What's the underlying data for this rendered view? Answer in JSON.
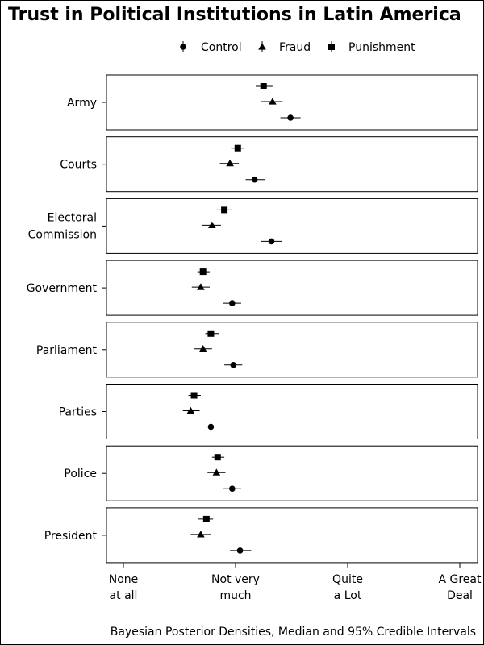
{
  "chart_data": {
    "type": "scatter",
    "title": "Trust in Political Institutions in Latin America",
    "caption": "Bayesian Posterior Densities, Median and 95% Credible Intervals",
    "legend": {
      "placement": "top",
      "entries": [
        {
          "name": "Control",
          "marker": "circle"
        },
        {
          "name": "Fraud",
          "marker": "triangle"
        },
        {
          "name": "Punishment",
          "marker": "square"
        }
      ]
    },
    "x_range": [
      1,
      4
    ],
    "x_ticks": [
      {
        "value": 1,
        "label": [
          "None",
          "at all"
        ]
      },
      {
        "value": 2,
        "label": [
          "Not very",
          "much"
        ]
      },
      {
        "value": 3,
        "label": [
          "Quite",
          "a Lot"
        ]
      },
      {
        "value": 4,
        "label": [
          "A Great",
          "Deal"
        ]
      }
    ],
    "categories": [
      {
        "label": [
          "Army"
        ],
        "points": {
          "Punishment": {
            "median": 2.25,
            "lo": 2.18,
            "hi": 2.33
          },
          "Fraud": {
            "median": 2.33,
            "lo": 2.23,
            "hi": 2.42
          },
          "Control": {
            "median": 2.49,
            "lo": 2.4,
            "hi": 2.58
          }
        }
      },
      {
        "label": [
          "Courts"
        ],
        "points": {
          "Punishment": {
            "median": 2.02,
            "lo": 1.96,
            "hi": 2.08
          },
          "Fraud": {
            "median": 1.95,
            "lo": 1.86,
            "hi": 2.03
          },
          "Control": {
            "median": 2.17,
            "lo": 2.09,
            "hi": 2.26
          }
        }
      },
      {
        "label": [
          "Electoral",
          "Commission"
        ],
        "points": {
          "Punishment": {
            "median": 1.9,
            "lo": 1.83,
            "hi": 1.97
          },
          "Fraud": {
            "median": 1.79,
            "lo": 1.7,
            "hi": 1.87
          },
          "Control": {
            "median": 2.32,
            "lo": 2.23,
            "hi": 2.41
          }
        }
      },
      {
        "label": [
          "Government"
        ],
        "points": {
          "Punishment": {
            "median": 1.71,
            "lo": 1.66,
            "hi": 1.77
          },
          "Fraud": {
            "median": 1.69,
            "lo": 1.61,
            "hi": 1.77
          },
          "Control": {
            "median": 1.97,
            "lo": 1.89,
            "hi": 2.05
          }
        }
      },
      {
        "label": [
          "Parliament"
        ],
        "points": {
          "Punishment": {
            "median": 1.78,
            "lo": 1.73,
            "hi": 1.85
          },
          "Fraud": {
            "median": 1.71,
            "lo": 1.63,
            "hi": 1.79
          },
          "Control": {
            "median": 1.98,
            "lo": 1.9,
            "hi": 2.06
          }
        }
      },
      {
        "label": [
          "Parties"
        ],
        "points": {
          "Punishment": {
            "median": 1.63,
            "lo": 1.58,
            "hi": 1.69
          },
          "Fraud": {
            "median": 1.6,
            "lo": 1.53,
            "hi": 1.68
          },
          "Control": {
            "median": 1.78,
            "lo": 1.71,
            "hi": 1.86
          }
        }
      },
      {
        "label": [
          "Police"
        ],
        "points": {
          "Punishment": {
            "median": 1.84,
            "lo": 1.79,
            "hi": 1.9
          },
          "Fraud": {
            "median": 1.83,
            "lo": 1.75,
            "hi": 1.91
          },
          "Control": {
            "median": 1.97,
            "lo": 1.89,
            "hi": 2.05
          }
        }
      },
      {
        "label": [
          "President"
        ],
        "points": {
          "Punishment": {
            "median": 1.74,
            "lo": 1.67,
            "hi": 1.8
          },
          "Fraud": {
            "median": 1.69,
            "lo": 1.6,
            "hi": 1.78
          },
          "Control": {
            "median": 2.04,
            "lo": 1.95,
            "hi": 2.14
          }
        }
      }
    ]
  }
}
